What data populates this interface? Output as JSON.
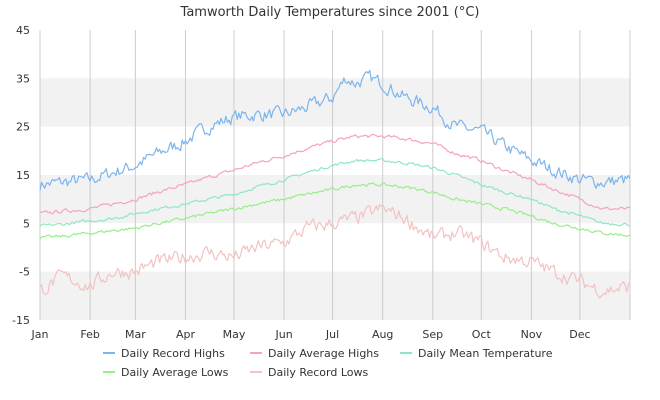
{
  "chart_data": {
    "type": "line",
    "title": "Tamworth Daily Temperatures since 2001 (°C)",
    "xlabel": "",
    "ylabel": "",
    "ylim": [
      -15,
      45
    ],
    "yticks": [
      45,
      35,
      25,
      15,
      5,
      -5,
      -15
    ],
    "grid": true,
    "band_style": "alternating grey horizontal bands",
    "legend_position": "bottom",
    "x_tick_labels": [
      "Jan",
      "Feb",
      "Mar",
      "Apr",
      "May",
      "Jun",
      "Jul",
      "Aug",
      "Sep",
      "Oct",
      "Nov",
      "Dec"
    ],
    "month_start_days": [
      1,
      32,
      60,
      91,
      121,
      152,
      182,
      213,
      244,
      274,
      305,
      335
    ],
    "days_in_year": 366,
    "series": [
      {
        "name": "Daily Record Highs",
        "color": "#7cb5ec",
        "day_of_year": [
          1,
          15,
          32,
          46,
          60,
          74,
          91,
          105,
          121,
          135,
          152,
          166,
          182,
          190,
          196,
          205,
          213,
          227,
          244,
          258,
          274,
          288,
          305,
          319,
          335,
          349,
          366
        ],
        "values": [
          13,
          13.5,
          14,
          15.5,
          17,
          19.5,
          22,
          25,
          27,
          27.5,
          27.5,
          29,
          31,
          35,
          34,
          35,
          34,
          31,
          29,
          25,
          24,
          21,
          18,
          16,
          14,
          13.5,
          14
        ]
      },
      {
        "name": "Daily Average Highs",
        "color": "#f7a1c4",
        "day_of_year": [
          1,
          15,
          32,
          46,
          60,
          74,
          91,
          105,
          121,
          135,
          152,
          166,
          182,
          196,
          213,
          227,
          244,
          258,
          274,
          288,
          305,
          319,
          335,
          349,
          366
        ],
        "values": [
          7,
          7.5,
          8,
          9,
          10,
          11.5,
          13,
          14.5,
          16,
          17.5,
          19,
          20.5,
          22,
          23,
          23,
          22.5,
          21.5,
          19.5,
          18,
          16,
          14,
          12,
          10,
          8,
          8
        ]
      },
      {
        "name": "Daily Mean Temperature",
        "color": "#8ee7c2",
        "day_of_year": [
          1,
          15,
          32,
          46,
          60,
          74,
          91,
          105,
          121,
          135,
          152,
          166,
          182,
          196,
          213,
          227,
          244,
          258,
          274,
          288,
          305,
          319,
          335,
          349,
          366
        ],
        "values": [
          4.5,
          4.8,
          5.5,
          6,
          7,
          8,
          9,
          10,
          11,
          12.5,
          14,
          15.5,
          17,
          18,
          18,
          17.5,
          16.5,
          15,
          13,
          11.5,
          10,
          8,
          6.5,
          5,
          4.8
        ]
      },
      {
        "name": "Daily Average Lows",
        "color": "#98ee8a",
        "day_of_year": [
          1,
          15,
          32,
          46,
          60,
          74,
          91,
          105,
          121,
          135,
          152,
          166,
          182,
          196,
          213,
          227,
          244,
          258,
          274,
          288,
          305,
          319,
          335,
          349,
          366
        ],
        "values": [
          2,
          2.3,
          3,
          3.5,
          4,
          5,
          6,
          7,
          8,
          9,
          10,
          11,
          12,
          13,
          13,
          12.5,
          11.5,
          10,
          9,
          8,
          6.5,
          5,
          4,
          3,
          2.5
        ]
      },
      {
        "name": "Daily Record Lows",
        "color": "#f4c2c2",
        "day_of_year": [
          1,
          15,
          32,
          46,
          60,
          74,
          91,
          105,
          121,
          135,
          152,
          166,
          182,
          196,
          213,
          227,
          244,
          258,
          274,
          288,
          305,
          319,
          335,
          349,
          366
        ],
        "values": [
          -9,
          -6,
          -8,
          -5,
          -5,
          -3,
          -2,
          -1,
          -2,
          0,
          1,
          4,
          5,
          6,
          8,
          6,
          2,
          3,
          1,
          -2,
          -3,
          -5,
          -7,
          -9,
          -8
        ]
      }
    ]
  }
}
